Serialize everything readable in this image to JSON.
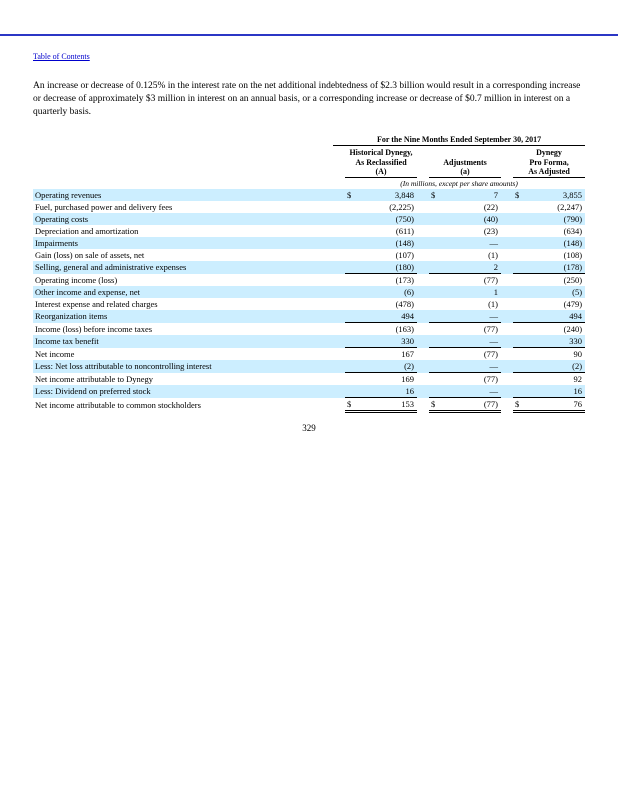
{
  "page": {
    "toc_link": "Table of Contents",
    "paragraph": "An increase or decrease of 0.125% in the interest rate on the net additional indebtedness of $2.3 billion would result in a corresponding increase or decrease of approximately $3 million in interest on an annual basis, or a corresponding increase or decrease of $0.7 million in interest on a quarterly basis.",
    "page_number": "329"
  },
  "table": {
    "period_header": "For the Nine Months Ended September 30, 2017",
    "units_note": "(In millions, except per share amounts)",
    "columns": [
      "Historical Dynegy,\nAs Reclassified\n(A)",
      "Adjustments\n(a)",
      "Dynegy\nPro Forma,\nAs Adjusted"
    ],
    "rows": [
      {
        "label": "Operating revenues",
        "dollar": true,
        "rule": "none",
        "values": [
          "3,848",
          "7",
          "3,855"
        ]
      },
      {
        "label": "Fuel, purchased power and delivery fees",
        "dollar": false,
        "rule": "none",
        "values": [
          "(2,225)",
          "(22)",
          "(2,247)"
        ]
      },
      {
        "label": "Operating costs",
        "dollar": false,
        "rule": "none",
        "values": [
          "(750)",
          "(40)",
          "(790)"
        ]
      },
      {
        "label": "Depreciation and amortization",
        "dollar": false,
        "rule": "none",
        "values": [
          "(611)",
          "(23)",
          "(634)"
        ]
      },
      {
        "label": "Impairments",
        "dollar": false,
        "rule": "none",
        "values": [
          "(148)",
          "—",
          "(148)"
        ]
      },
      {
        "label": "Gain (loss) on sale of assets, net",
        "dollar": false,
        "rule": "none",
        "values": [
          "(107)",
          "(1)",
          "(108)"
        ]
      },
      {
        "label": "Selling, general and administrative expenses",
        "dollar": false,
        "rule": "single",
        "values": [
          "(180)",
          "2",
          "(178)"
        ]
      },
      {
        "label": "Operating income (loss)",
        "dollar": false,
        "rule": "none",
        "values": [
          "(173)",
          "(77)",
          "(250)"
        ]
      },
      {
        "label": "Other income and expense, net",
        "dollar": false,
        "rule": "none",
        "values": [
          "(6)",
          "1",
          "(5)"
        ]
      },
      {
        "label": "Interest expense and related charges",
        "dollar": false,
        "rule": "none",
        "values": [
          "(478)",
          "(1)",
          "(479)"
        ]
      },
      {
        "label": "Reorganization items",
        "dollar": false,
        "rule": "single",
        "values": [
          "494",
          "—",
          "494"
        ]
      },
      {
        "label": "Income (loss) before income taxes",
        "dollar": false,
        "rule": "none",
        "values": [
          "(163)",
          "(77)",
          "(240)"
        ]
      },
      {
        "label": "Income tax benefit",
        "dollar": false,
        "rule": "single",
        "values": [
          "330",
          "—",
          "330"
        ]
      },
      {
        "label": "Net income",
        "dollar": false,
        "rule": "none",
        "values": [
          "167",
          "(77)",
          "90"
        ]
      },
      {
        "label": "Less: Net loss attributable to noncontrolling interest",
        "dollar": false,
        "rule": "single",
        "values": [
          "(2)",
          "—",
          "(2)"
        ]
      },
      {
        "label": "Net income attributable to Dynegy",
        "dollar": false,
        "rule": "none",
        "values": [
          "169",
          "(77)",
          "92"
        ]
      },
      {
        "label": "Less: Dividend on preferred stock",
        "dollar": false,
        "rule": "single",
        "values": [
          "16",
          "—",
          "16"
        ]
      },
      {
        "label": "Net income attributable to common stockholders",
        "dollar": true,
        "rule": "double",
        "values": [
          "153",
          "(77)",
          "76"
        ]
      }
    ]
  }
}
